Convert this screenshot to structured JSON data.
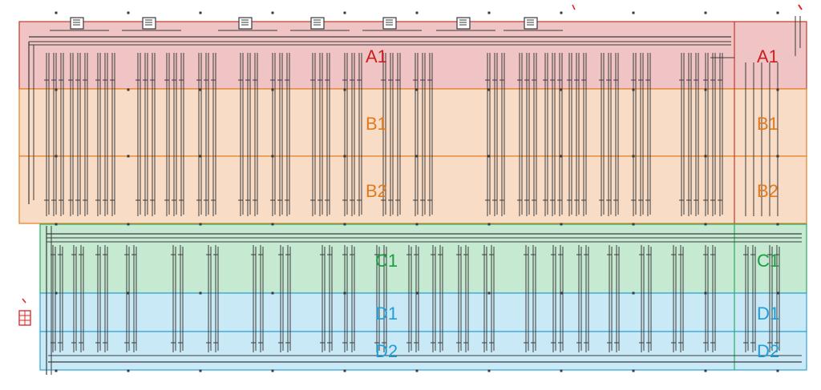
{
  "zones": [
    {
      "id": "A1",
      "fill": "#f0c4c4",
      "stroke": "#c0392b",
      "text_color": "#cc1f1f"
    },
    {
      "id": "B1",
      "fill": "#f9dcc5",
      "stroke": "#e67e22",
      "text_color": "#e07a1f"
    },
    {
      "id": "B2",
      "fill": "#f9dcc5",
      "stroke": "#e67e22",
      "text_color": "#e07a1f"
    },
    {
      "id": "C1",
      "fill": "#c6ead1",
      "stroke": "#27ae60",
      "text_color": "#1a9e3f"
    },
    {
      "id": "D1",
      "fill": "#c9e9f7",
      "stroke": "#2ea3d6",
      "text_color": "#1e9fd8"
    },
    {
      "id": "D2",
      "fill": "#c9e9f7",
      "stroke": "#2ea3d6",
      "text_color": "#1e9fd8"
    }
  ],
  "labels": {
    "main": [
      "A1",
      "B1",
      "B2",
      "C1",
      "D1",
      "D2"
    ],
    "side": [
      "A1",
      "B1",
      "B2",
      "C1",
      "D1",
      "D2"
    ]
  },
  "colors": {
    "line": "#3a3a3a",
    "marker": "#e02020"
  },
  "icons": [
    "junction-box-icon",
    "legend-marker-icon"
  ]
}
